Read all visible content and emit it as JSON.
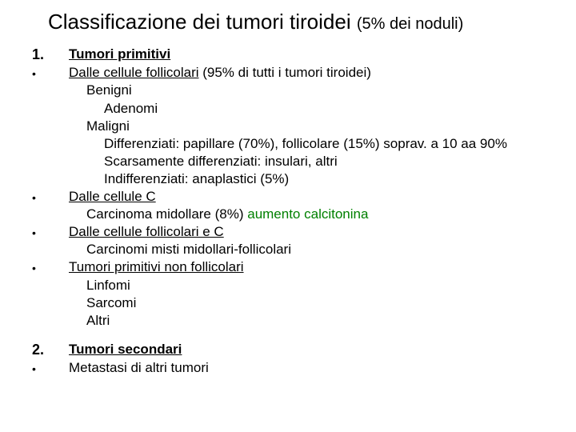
{
  "colors": {
    "text": "#000000",
    "accent_green": "#008000",
    "background": "#ffffff"
  },
  "typography": {
    "font_family": "Comic Sans MS",
    "title_fontsize": 26,
    "title_note_fontsize": 20,
    "body_fontsize": 17,
    "line_height": 1.3
  },
  "title": {
    "main": "Classificazione dei tumori tiroidei",
    "note": "(5% dei noduli)"
  },
  "sections": [
    {
      "num": "1.",
      "heading": "Tumori primitivi",
      "items": [
        {
          "lead_plain": "Dalle cellule follicolari",
          "lead_rest": "  (95% di tutti i tumori tiroidei)",
          "sub": [
            {
              "lvl": 1,
              "text": "Benigni"
            },
            {
              "lvl": 2,
              "text": "Adenomi"
            },
            {
              "lvl": 1,
              "text": "Maligni"
            },
            {
              "lvl": 2,
              "text": "Differenziati: papillare (70%), follicolare (15%) soprav. a 10 aa 90%"
            },
            {
              "lvl": 2,
              "text": "Scarsamente differenziati: insulari, altri"
            },
            {
              "lvl": 2,
              "text": "Indifferenziati: anaplastici (5%)"
            }
          ]
        },
        {
          "lead_plain": "Dalle cellule C",
          "sub": [
            {
              "lvl": 1,
              "text": "Carcinoma midollare (8%)   ",
              "accent": "aumento calcitonina"
            }
          ]
        },
        {
          "lead_plain": "Dalle cellule follicolari e C",
          "sub": [
            {
              "lvl": 1,
              "text": "Carcinomi misti midollari-follicolari"
            }
          ]
        },
        {
          "lead_plain": "Tumori primitivi non follicolari",
          "sub": [
            {
              "lvl": 1,
              "text": "Linfomi"
            },
            {
              "lvl": 1,
              "text": "Sarcomi"
            },
            {
              "lvl": 1,
              "text": "Altri"
            }
          ]
        }
      ]
    },
    {
      "num": "2.",
      "heading": "Tumori secondari",
      "items": [
        {
          "lead_plain": "Metastasi di altri tumori",
          "sub": []
        }
      ]
    }
  ]
}
